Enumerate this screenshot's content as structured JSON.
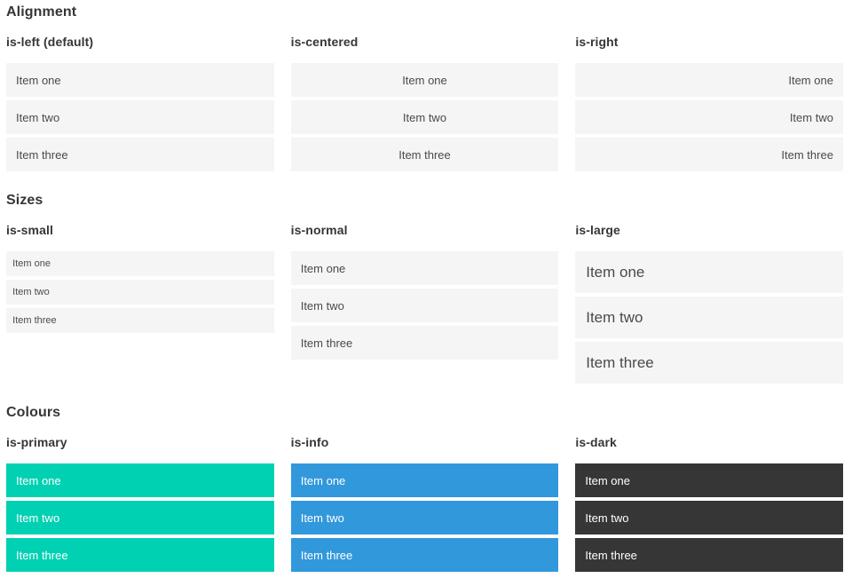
{
  "colors": {
    "primary": "#00d1b2",
    "info": "#3298dc",
    "dark": "#363636",
    "item_bg": "#f5f5f5",
    "item_text": "#4a4a4a",
    "heading_text": "#363636",
    "inverse_text": "#ffffff"
  },
  "sections": [
    {
      "title": "Alignment",
      "columns": [
        {
          "label": "is-left (default)",
          "variant": "is-left",
          "items": [
            "Item one",
            "Item two",
            "Item three"
          ]
        },
        {
          "label": "is-centered",
          "variant": "is-centered",
          "items": [
            "Item one",
            "Item two",
            "Item three"
          ]
        },
        {
          "label": "is-right",
          "variant": "is-right",
          "items": [
            "Item one",
            "Item two",
            "Item three"
          ]
        }
      ]
    },
    {
      "title": "Sizes",
      "columns": [
        {
          "label": "is-small",
          "variant": "is-small",
          "items": [
            "Item one",
            "Item two",
            "Item three"
          ]
        },
        {
          "label": "is-normal",
          "variant": "is-normal",
          "items": [
            "Item one",
            "Item two",
            "Item three"
          ]
        },
        {
          "label": "is-large",
          "variant": "is-large",
          "items": [
            "Item one",
            "Item two",
            "Item three"
          ]
        }
      ]
    },
    {
      "title": "Colours",
      "columns": [
        {
          "label": "is-primary",
          "variant": "is-primary",
          "items": [
            "Item one",
            "Item two",
            "Item three"
          ]
        },
        {
          "label": "is-info",
          "variant": "is-info",
          "items": [
            "Item one",
            "Item two",
            "Item three"
          ]
        },
        {
          "label": "is-dark",
          "variant": "is-dark",
          "items": [
            "Item one",
            "Item two",
            "Item three"
          ]
        }
      ]
    }
  ]
}
